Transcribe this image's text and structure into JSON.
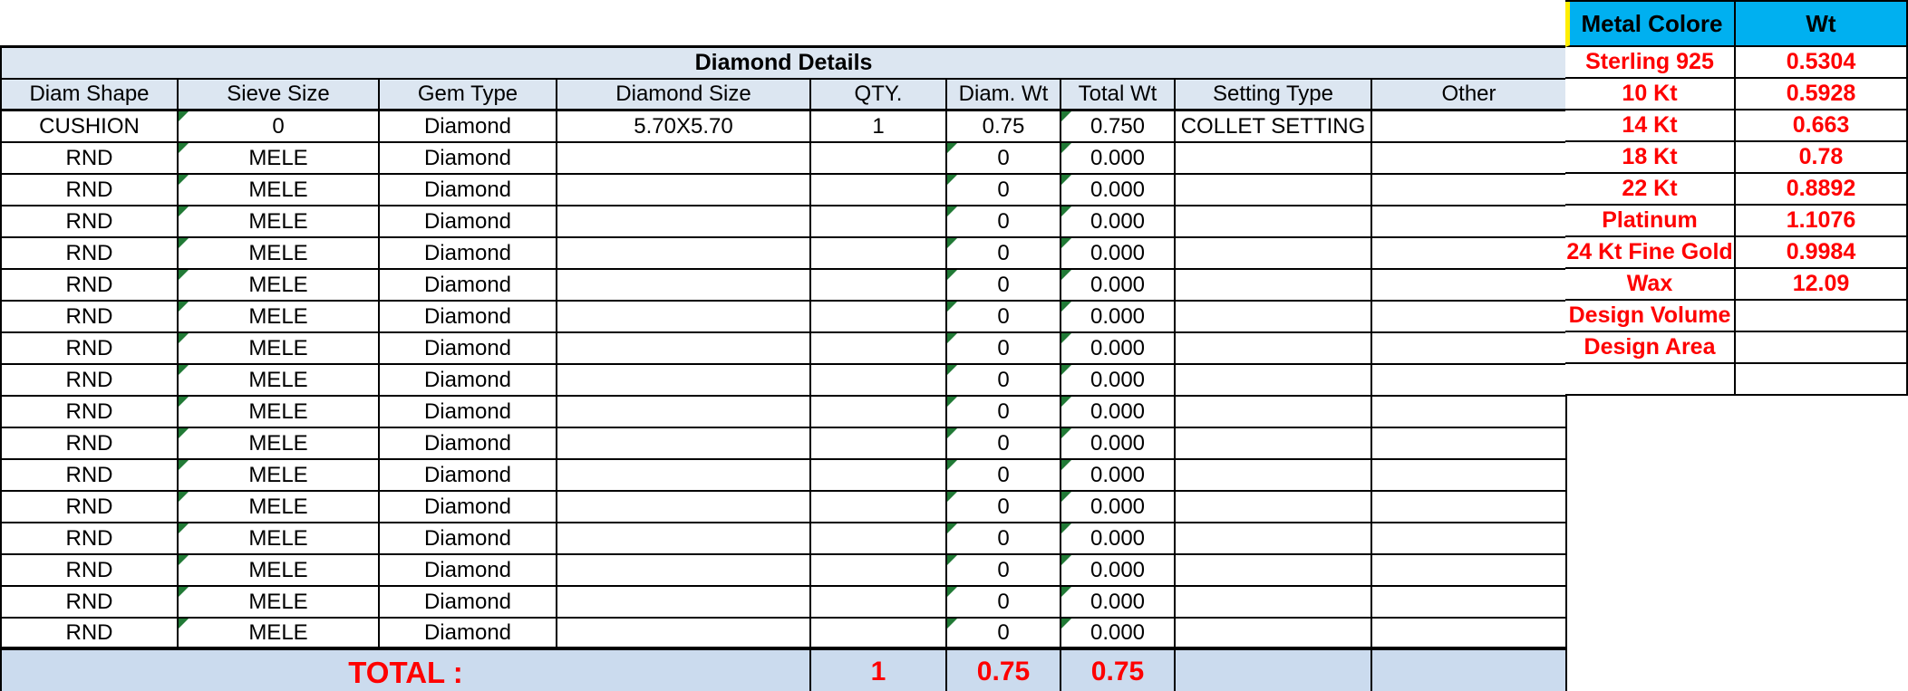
{
  "main_table": {
    "title": "Diamond Details",
    "columns": [
      "Diam Shape",
      "Sieve Size",
      "Gem Type",
      "Diamond Size",
      "QTY.",
      "Diam. Wt",
      "Total Wt",
      "Setting Type",
      "Other"
    ],
    "rows": [
      {
        "shape": "CUSHION",
        "sieve": "0",
        "gem": "Diamond",
        "size": "5.70X5.70",
        "qty": "1",
        "diam_wt": "0.75",
        "total_wt": "0.750",
        "setting": "COLLET SETTING",
        "other": "",
        "tri_sieve": true,
        "tri_diam": false,
        "tri_total": true
      },
      {
        "shape": "RND",
        "sieve": "MELE",
        "gem": "Diamond",
        "size": "",
        "qty": "",
        "diam_wt": "0",
        "total_wt": "0.000",
        "setting": "",
        "other": "",
        "tri_sieve": true,
        "tri_diam": true,
        "tri_total": true
      },
      {
        "shape": "RND",
        "sieve": "MELE",
        "gem": "Diamond",
        "size": "",
        "qty": "",
        "diam_wt": "0",
        "total_wt": "0.000",
        "setting": "",
        "other": "",
        "tri_sieve": true,
        "tri_diam": true,
        "tri_total": true
      },
      {
        "shape": "RND",
        "sieve": "MELE",
        "gem": "Diamond",
        "size": "",
        "qty": "",
        "diam_wt": "0",
        "total_wt": "0.000",
        "setting": "",
        "other": "",
        "tri_sieve": true,
        "tri_diam": true,
        "tri_total": true
      },
      {
        "shape": "RND",
        "sieve": "MELE",
        "gem": "Diamond",
        "size": "",
        "qty": "",
        "diam_wt": "0",
        "total_wt": "0.000",
        "setting": "",
        "other": "",
        "tri_sieve": true,
        "tri_diam": true,
        "tri_total": true
      },
      {
        "shape": "RND",
        "sieve": "MELE",
        "gem": "Diamond",
        "size": "",
        "qty": "",
        "diam_wt": "0",
        "total_wt": "0.000",
        "setting": "",
        "other": "",
        "tri_sieve": true,
        "tri_diam": true,
        "tri_total": true
      },
      {
        "shape": "RND",
        "sieve": "MELE",
        "gem": "Diamond",
        "size": "",
        "qty": "",
        "diam_wt": "0",
        "total_wt": "0.000",
        "setting": "",
        "other": "",
        "tri_sieve": true,
        "tri_diam": true,
        "tri_total": true
      },
      {
        "shape": "RND",
        "sieve": "MELE",
        "gem": "Diamond",
        "size": "",
        "qty": "",
        "diam_wt": "0",
        "total_wt": "0.000",
        "setting": "",
        "other": "",
        "tri_sieve": true,
        "tri_diam": true,
        "tri_total": true
      },
      {
        "shape": "RND",
        "sieve": "MELE",
        "gem": "Diamond",
        "size": "",
        "qty": "",
        "diam_wt": "0",
        "total_wt": "0.000",
        "setting": "",
        "other": "",
        "tri_sieve": true,
        "tri_diam": true,
        "tri_total": true
      },
      {
        "shape": "RND",
        "sieve": "MELE",
        "gem": "Diamond",
        "size": "",
        "qty": "",
        "diam_wt": "0",
        "total_wt": "0.000",
        "setting": "",
        "other": "",
        "tri_sieve": true,
        "tri_diam": true,
        "tri_total": true
      },
      {
        "shape": "RND",
        "sieve": "MELE",
        "gem": "Diamond",
        "size": "",
        "qty": "",
        "diam_wt": "0",
        "total_wt": "0.000",
        "setting": "",
        "other": "",
        "tri_sieve": true,
        "tri_diam": true,
        "tri_total": true
      },
      {
        "shape": "RND",
        "sieve": "MELE",
        "gem": "Diamond",
        "size": "",
        "qty": "",
        "diam_wt": "0",
        "total_wt": "0.000",
        "setting": "",
        "other": "",
        "tri_sieve": true,
        "tri_diam": true,
        "tri_total": true
      },
      {
        "shape": "RND",
        "sieve": "MELE",
        "gem": "Diamond",
        "size": "",
        "qty": "",
        "diam_wt": "0",
        "total_wt": "0.000",
        "setting": "",
        "other": "",
        "tri_sieve": true,
        "tri_diam": true,
        "tri_total": true
      },
      {
        "shape": "RND",
        "sieve": "MELE",
        "gem": "Diamond",
        "size": "",
        "qty": "",
        "diam_wt": "0",
        "total_wt": "0.000",
        "setting": "",
        "other": "",
        "tri_sieve": true,
        "tri_diam": true,
        "tri_total": true
      },
      {
        "shape": "RND",
        "sieve": "MELE",
        "gem": "Diamond",
        "size": "",
        "qty": "",
        "diam_wt": "0",
        "total_wt": "0.000",
        "setting": "",
        "other": "",
        "tri_sieve": true,
        "tri_diam": true,
        "tri_total": true
      },
      {
        "shape": "RND",
        "sieve": "MELE",
        "gem": "Diamond",
        "size": "",
        "qty": "",
        "diam_wt": "0",
        "total_wt": "0.000",
        "setting": "",
        "other": "",
        "tri_sieve": true,
        "tri_diam": true,
        "tri_total": true
      },
      {
        "shape": "RND",
        "sieve": "MELE",
        "gem": "Diamond",
        "size": "",
        "qty": "",
        "diam_wt": "0",
        "total_wt": "0.000",
        "setting": "",
        "other": "",
        "tri_sieve": true,
        "tri_diam": true,
        "tri_total": true
      }
    ],
    "total": {
      "label": "TOTAL :",
      "qty": "1",
      "diam_wt": "0.75",
      "total_wt": "0.75",
      "setting": "",
      "other": ""
    }
  },
  "metal_table": {
    "headers": {
      "metal": "Metal Colore",
      "wt": "Wt"
    },
    "rows": [
      {
        "metal": "Sterling 925",
        "wt": "0.5304"
      },
      {
        "metal": "10 Kt",
        "wt": "0.5928"
      },
      {
        "metal": "14 Kt",
        "wt": "0.663"
      },
      {
        "metal": "18 Kt",
        "wt": "0.78"
      },
      {
        "metal": "22 Kt",
        "wt": "0.8892"
      },
      {
        "metal": "Platinum",
        "wt": "1.1076"
      },
      {
        "metal": "24 Kt Fine Gold",
        "wt": "0.9984"
      },
      {
        "metal": "Wax",
        "wt": "12.09"
      },
      {
        "metal": "Design Volume",
        "wt": ""
      },
      {
        "metal": "Design Area",
        "wt": ""
      },
      {
        "metal": "",
        "wt": ""
      }
    ]
  },
  "colors": {
    "header_fill": "#dce6f1",
    "total_fill": "#cbdbee",
    "metal_header_fill": "#00b0f0",
    "metal_header_left_border": "#ffee00",
    "value_red": "#fe0000",
    "error_triangle_green": "#217a36",
    "grid_border": "#000000"
  }
}
